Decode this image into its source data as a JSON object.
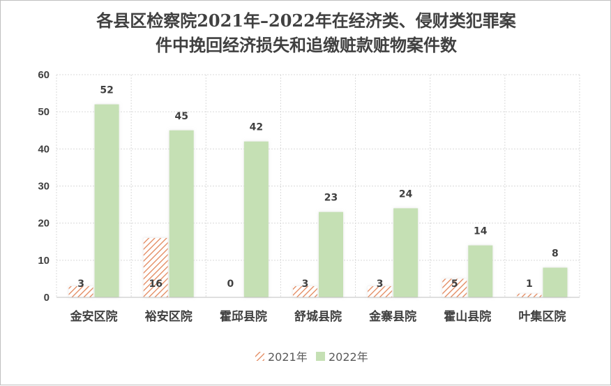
{
  "chart_data": {
    "type": "bar",
    "title_lines": [
      "各县区检察院2021年–2022年在经济类、侵财类犯罪案",
      "件中挽回经济损失和追缴赃款赃物案件数"
    ],
    "categories": [
      "金安区院",
      "裕安区院",
      "霍邱县院",
      "舒城县院",
      "金寨县院",
      "霍山县院",
      "叶集区院"
    ],
    "series": [
      {
        "name": "2021年",
        "values": [
          3,
          16,
          0,
          3,
          3,
          5,
          1
        ],
        "color": "#f4b183",
        "pattern": "diagonal-hatch"
      },
      {
        "name": "2022年",
        "values": [
          52,
          45,
          42,
          23,
          24,
          14,
          8
        ],
        "color": "#c5e0b4",
        "pattern": "solid"
      }
    ],
    "ylim": [
      0,
      60
    ],
    "yticks": [
      0,
      10,
      20,
      30,
      40,
      50,
      60
    ],
    "grid": true,
    "legend_position": "bottom"
  }
}
